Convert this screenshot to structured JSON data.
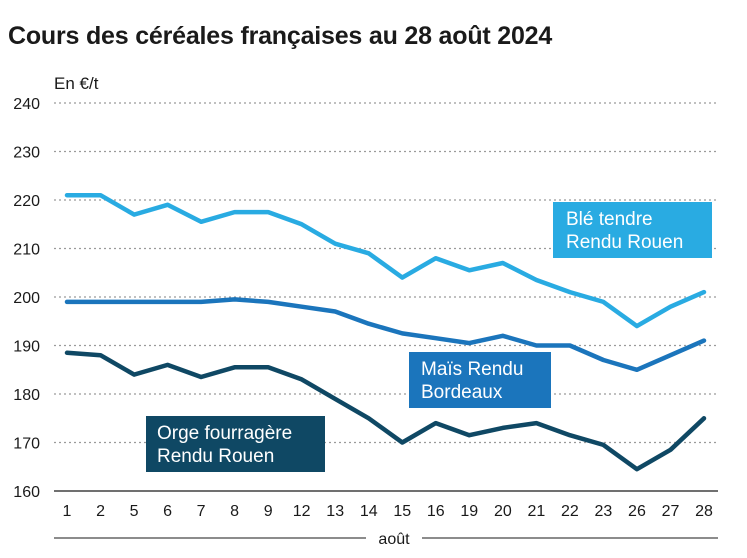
{
  "title": "Cours des céréales françaises au 28 août 2024",
  "chart_data": {
    "type": "line",
    "title": "Cours des céréales françaises au 28 août 2024",
    "ylabel": "En €/t",
    "xlabel": "août",
    "ylim": [
      160,
      240
    ],
    "yticks": [
      "160",
      "170",
      "180",
      "190",
      "200",
      "210",
      "220",
      "230",
      "240"
    ],
    "categories": [
      "1",
      "2",
      "5",
      "6",
      "7",
      "8",
      "9",
      "12",
      "13",
      "14",
      "15",
      "16",
      "19",
      "20",
      "21",
      "22",
      "23",
      "26",
      "27",
      "28"
    ],
    "grid": true,
    "series": [
      {
        "name": "Blé tendre Rendu Rouen",
        "label_lines": [
          "Blé tendre",
          "Rendu Rouen"
        ],
        "color": "#29abe2",
        "values": [
          221,
          221,
          217,
          219,
          215.5,
          217.5,
          217.5,
          215,
          211,
          209,
          204,
          208,
          205.5,
          207,
          203.5,
          201,
          199,
          194,
          198,
          201
        ]
      },
      {
        "name": "Maïs Rendu Bordeaux",
        "label_lines": [
          "Maïs Rendu",
          "Bordeaux"
        ],
        "color": "#1b75bc",
        "values": [
          199,
          199,
          199,
          199,
          199,
          199.5,
          199,
          198,
          197,
          194.5,
          192.5,
          191.5,
          190.5,
          192,
          190,
          190,
          187,
          185,
          188,
          191
        ]
      },
      {
        "name": "Orge fourragère Rendu Rouen",
        "label_lines": [
          "Orge fourragère",
          "Rendu Rouen"
        ],
        "color": "#0f4864",
        "values": [
          188.5,
          188,
          184,
          186,
          183.5,
          185.5,
          185.5,
          183,
          179,
          175,
          170,
          174,
          171.5,
          173,
          174,
          171.5,
          169.5,
          164.5,
          168.5,
          175
        ]
      }
    ]
  }
}
